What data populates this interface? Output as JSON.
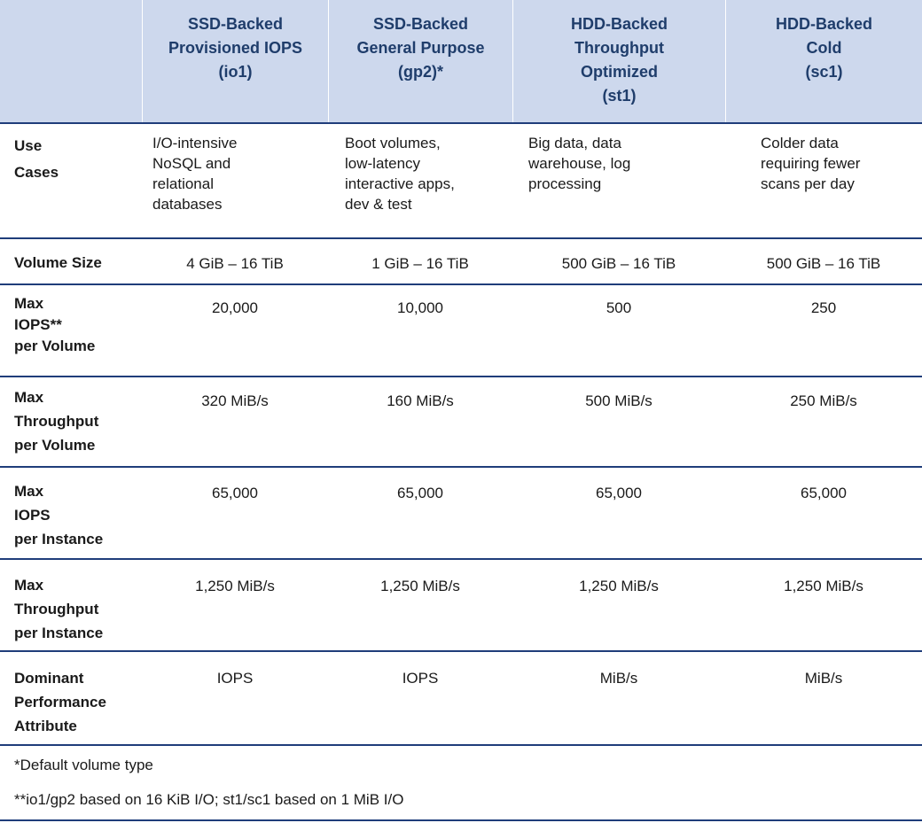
{
  "table": {
    "columns": [
      "SSD-Backed\nProvisioned IOPS\n(io1)",
      "SSD-Backed\nGeneral Purpose\n(gp2)*",
      "HDD-Backed\nThroughput\nOptimized\n(st1)",
      "HDD-Backed\nCold\n(sc1)"
    ],
    "rows": [
      {
        "label": "Use\nCases",
        "values": [
          "I/O-intensive\nNoSQL and\nrelational\ndatabases",
          "Boot volumes,\nlow-latency\ninteractive apps,\ndev & test",
          "Big data, data\nwarehouse, log\nprocessing",
          "Colder data\nrequiring fewer\nscans per day"
        ]
      },
      {
        "label": "Volume Size",
        "values": [
          "4 GiB – 16 TiB",
          "1 GiB – 16 TiB",
          "500 GiB – 16 TiB",
          "500 GiB – 16 TiB"
        ]
      },
      {
        "label": "Max\nIOPS**\nper Volume",
        "values": [
          "20,000",
          "10,000",
          "500",
          "250"
        ]
      },
      {
        "label": "Max\nThroughput\nper Volume",
        "values": [
          "320 MiB/s",
          "160 MiB/s",
          "500 MiB/s",
          "250 MiB/s"
        ]
      },
      {
        "label": "Max\nIOPS\nper Instance",
        "values": [
          "65,000",
          "65,000",
          "65,000",
          "65,000"
        ]
      },
      {
        "label": "Max\nThroughput\nper Instance",
        "values": [
          "1,250 MiB/s",
          "1,250 MiB/s",
          "1,250 MiB/s",
          "1,250 MiB/s"
        ]
      },
      {
        "label": "Dominant\nPerformance\nAttribute",
        "values": [
          "IOPS",
          "IOPS",
          "MiB/s",
          "MiB/s"
        ]
      }
    ]
  },
  "footnotes": [
    "*Default volume type",
    "**io1/gp2 based on 16 KiB I/O; st1/sc1 based on 1 MiB I/O"
  ]
}
